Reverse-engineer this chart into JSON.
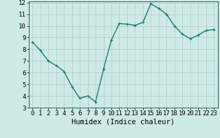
{
  "x": [
    0,
    1,
    2,
    3,
    4,
    5,
    6,
    7,
    8,
    9,
    10,
    11,
    12,
    13,
    14,
    15,
    16,
    17,
    18,
    19,
    20,
    21,
    22,
    23
  ],
  "y": [
    8.6,
    7.9,
    7.0,
    6.6,
    6.1,
    4.8,
    3.8,
    4.0,
    3.5,
    6.3,
    8.8,
    10.2,
    10.15,
    10.05,
    10.3,
    11.9,
    11.5,
    11.0,
    10.0,
    9.3,
    8.9,
    9.2,
    9.6,
    9.7
  ],
  "line_color": "#1a7a6e",
  "marker_color": "#1a7a6e",
  "bg_color": "#cdeae7",
  "grid_color": "#b8cece",
  "xlabel": "Humidex (Indice chaleur)",
  "ylim": [
    3,
    12
  ],
  "xlim": [
    -0.5,
    23.5
  ],
  "yticks": [
    3,
    4,
    5,
    6,
    7,
    8,
    9,
    10,
    11,
    12
  ],
  "xticks": [
    0,
    1,
    2,
    3,
    4,
    5,
    6,
    7,
    8,
    9,
    10,
    11,
    12,
    13,
    14,
    15,
    16,
    17,
    18,
    19,
    20,
    21,
    22,
    23
  ],
  "xlabel_fontsize": 7.5,
  "tick_fontsize": 6.5,
  "line_width": 1.0,
  "marker_size": 2.5
}
